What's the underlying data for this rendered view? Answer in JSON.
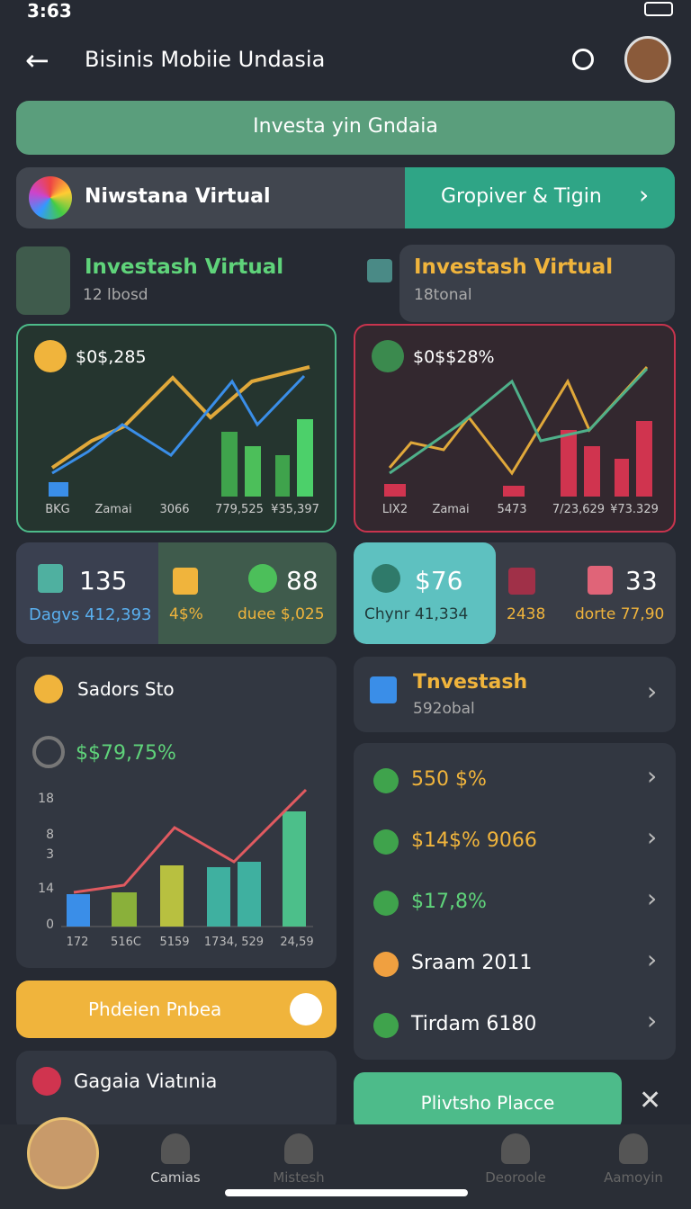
{
  "status": {
    "time": "3:63"
  },
  "header": {
    "title": "Bisinis Mobiie Undasia"
  },
  "search": {
    "placeholder": "Investa yin Gndaia"
  },
  "banner": {
    "left": "Niwstana Virtual",
    "right": "Gropiver & Tigin"
  },
  "sections": [
    {
      "title": "Investash Virtual",
      "sub": "12 lbosd"
    },
    {
      "title": "Investash Virtual",
      "sub": "18tonal"
    }
  ],
  "charts": [
    {
      "value": "$0$,285",
      "labels": [
        "BKG",
        "Zamai",
        "3066",
        "779,525",
        "¥35,397"
      ]
    },
    {
      "value": "$0$$28%",
      "labels": [
        "LIX2",
        "Zamai",
        "5473",
        "7/23,629",
        "¥73.329"
      ]
    }
  ],
  "stats": [
    [
      {
        "value": "135",
        "label": "Dagvs 412,393"
      },
      {
        "label": "4$%"
      },
      {
        "value": "88",
        "label": "duee $,025"
      }
    ],
    [
      {
        "value": "$76",
        "label": "Chynr 41,334"
      },
      {
        "label": "2438"
      },
      {
        "value": "33",
        "label": "dorte 77,90"
      }
    ]
  ],
  "sadors": {
    "title": "Sadors Sto",
    "value": "$$79,75%",
    "y_labels": [
      "18",
      "8",
      "3",
      "14",
      "0"
    ],
    "x_labels": [
      "172",
      "516C",
      "5159",
      "1734, 529",
      "24,59"
    ]
  },
  "button": "Phdeien Pnbea",
  "gagaia": "Gagaia Viatınia",
  "investash": {
    "title": "Tnvestash",
    "sub": "592obal"
  },
  "list": [
    "550 $%",
    "$14$% 9066",
    "$17,8%",
    "Sraam 2011",
    "Tirdam 6180"
  ],
  "place_button": "Plivtsho Placce",
  "nav": [
    "Camias",
    "Mistesh",
    "Deoroole",
    "Aamoyin"
  ]
}
